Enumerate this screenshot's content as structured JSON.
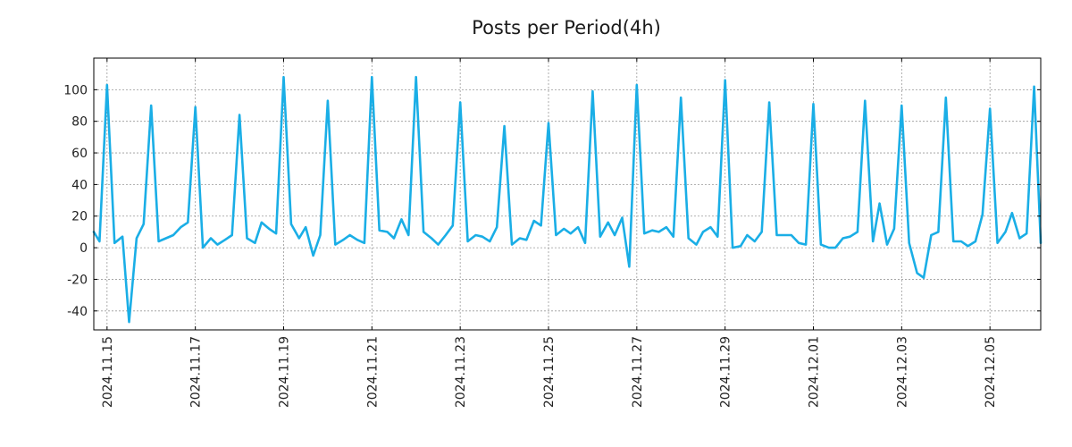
{
  "chart_data": {
    "type": "line",
    "title": "Posts per Period(4h)",
    "xlabel": "",
    "ylabel": "",
    "ylim": [
      -52,
      120
    ],
    "yticks": [
      -40,
      -20,
      0,
      20,
      40,
      60,
      80,
      100
    ],
    "ytick_labels": [
      "-40",
      "-20",
      "0",
      "20",
      "40",
      "60",
      "80",
      "100"
    ],
    "x_unit": "days since 2024.11.15",
    "xlim": [
      -0.3,
      21.15
    ],
    "xticks": [
      0,
      2,
      4,
      6,
      8,
      10,
      12,
      14,
      16,
      18,
      20
    ],
    "xtick_labels": [
      "2024.11.15",
      "2024.11.17",
      "2024.11.19",
      "2024.11.21",
      "2024.11.23",
      "2024.11.25",
      "2024.11.27",
      "2024.11.29",
      "2024.12.01",
      "2024.12.03",
      "2024.12.05"
    ],
    "grid": true,
    "line_color": "#1aaee6",
    "series": [
      {
        "name": "posts",
        "x": [
          -0.3,
          -0.17,
          0.0,
          0.17,
          0.35,
          0.5,
          0.67,
          0.83,
          1.0,
          1.17,
          1.5,
          1.67,
          1.83,
          2.0,
          2.17,
          2.35,
          2.5,
          2.67,
          2.83,
          3.0,
          3.17,
          3.35,
          3.5,
          3.67,
          3.83,
          4.0,
          4.17,
          4.35,
          4.5,
          4.67,
          4.83,
          5.0,
          5.17,
          5.35,
          5.5,
          5.67,
          5.83,
          6.0,
          6.17,
          6.35,
          6.5,
          6.67,
          6.83,
          7.0,
          7.17,
          7.35,
          7.5,
          7.67,
          7.83,
          8.0,
          8.17,
          8.35,
          8.5,
          8.67,
          8.83,
          9.0,
          9.17,
          9.35,
          9.5,
          9.67,
          9.83,
          10.0,
          10.17,
          10.35,
          10.5,
          10.67,
          10.83,
          11.0,
          11.17,
          11.35,
          11.5,
          11.67,
          11.83,
          12.0,
          12.17,
          12.35,
          12.5,
          12.67,
          12.83,
          13.0,
          13.17,
          13.35,
          13.5,
          13.67,
          13.83,
          14.0,
          14.17,
          14.35,
          14.5,
          14.67,
          14.83,
          15.0,
          15.17,
          15.5,
          15.67,
          15.83,
          16.0,
          16.17,
          16.35,
          16.5,
          16.67,
          16.83,
          17.0,
          17.17,
          17.35,
          17.5,
          17.67,
          17.83,
          18.0,
          18.17,
          18.35,
          18.5,
          18.67,
          18.83,
          19.0,
          19.17,
          19.35,
          19.5,
          19.67,
          19.83,
          20.0,
          20.17,
          20.35,
          20.5,
          20.67,
          20.83,
          21.0,
          21.15
        ],
        "values": [
          10,
          4,
          103,
          3,
          7,
          -47,
          6,
          15,
          90,
          4,
          8,
          13,
          16,
          89,
          0,
          6,
          2,
          5,
          8,
          84,
          6,
          3,
          16,
          12,
          9,
          108,
          15,
          6,
          13,
          -5,
          8,
          93,
          2,
          5,
          8,
          5,
          3,
          108,
          11,
          10,
          6,
          18,
          8,
          108,
          10,
          6,
          2,
          8,
          14,
          92,
          4,
          8,
          7,
          4,
          13,
          77,
          2,
          6,
          5,
          17,
          14,
          79,
          8,
          12,
          9,
          13,
          3,
          99,
          7,
          16,
          8,
          19,
          -12,
          103,
          9,
          11,
          10,
          13,
          7,
          95,
          6,
          2,
          10,
          13,
          7,
          106,
          0,
          1,
          8,
          4,
          10,
          92,
          8,
          8,
          3,
          2,
          91,
          2,
          0,
          0,
          6,
          7,
          10,
          93,
          4,
          28,
          2,
          12,
          90,
          3,
          -16,
          -19,
          8,
          10,
          95,
          4,
          4,
          1,
          4,
          21,
          88,
          3,
          10,
          22,
          6,
          9,
          102,
          3
        ]
      }
    ]
  }
}
